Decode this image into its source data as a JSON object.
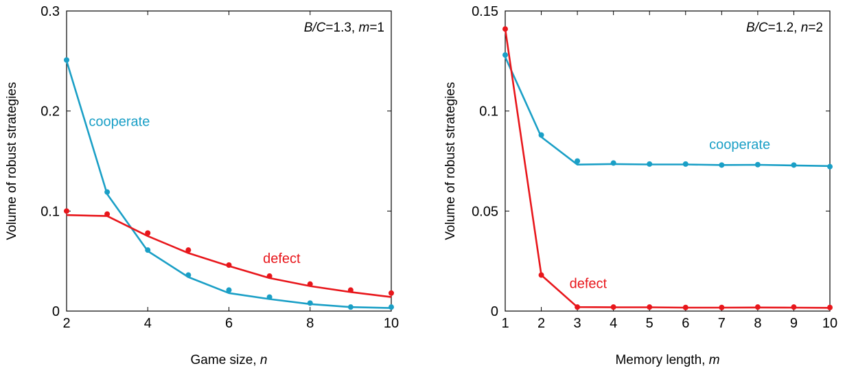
{
  "chart_data": [
    {
      "type": "line",
      "title": "",
      "annotation": {
        "parts": [
          {
            "text": "B/C",
            "italic": true
          },
          {
            "text": "=1.3, ",
            "italic": false
          },
          {
            "text": "m",
            "italic": true
          },
          {
            "text": "=1",
            "italic": false
          }
        ]
      },
      "xlabel": "Game size, ",
      "xlabel_var": "n",
      "ylabel": "Volume of robust strategies",
      "xlim": [
        2,
        10
      ],
      "ylim": [
        0,
        0.3
      ],
      "xticks": [
        2,
        4,
        6,
        8,
        10
      ],
      "yticks": [
        0,
        0.1,
        0.2,
        0.3
      ],
      "xtick_labels": [
        "2",
        "4",
        "6",
        "8",
        "10"
      ],
      "ytick_labels": [
        "0",
        "0.1",
        "0.2",
        "0.3"
      ],
      "grid": false,
      "series": [
        {
          "name": "cooperate",
          "color": "#1a9fc6",
          "x": [
            2,
            3,
            4,
            5,
            6,
            7,
            8,
            9,
            10
          ],
          "points": [
            0.251,
            0.119,
            0.061,
            0.036,
            0.021,
            0.014,
            0.008,
            0.004,
            0.004
          ],
          "fit": [
            0.25,
            0.117,
            0.06,
            0.034,
            0.018,
            0.012,
            0.007,
            0.004,
            0.003
          ],
          "label_pos": [
            3.3,
            0.185
          ]
        },
        {
          "name": "defect",
          "color": "#e8161b",
          "x": [
            2,
            3,
            4,
            5,
            6,
            7,
            8,
            9,
            10
          ],
          "points": [
            0.1,
            0.097,
            0.078,
            0.061,
            0.046,
            0.035,
            0.027,
            0.021,
            0.018
          ],
          "fit": [
            0.096,
            0.095,
            0.075,
            0.058,
            0.045,
            0.033,
            0.025,
            0.019,
            0.014
          ],
          "label_pos": [
            7.3,
            0.048
          ]
        }
      ]
    },
    {
      "type": "line",
      "title": "",
      "annotation": {
        "parts": [
          {
            "text": "B/C",
            "italic": true
          },
          {
            "text": "=1.2, ",
            "italic": false
          },
          {
            "text": "n",
            "italic": true
          },
          {
            "text": "=2",
            "italic": false
          }
        ]
      },
      "xlabel": "Memory length, ",
      "xlabel_var": "m",
      "ylabel": "Volume of robust strategies",
      "xlim": [
        1,
        10
      ],
      "ylim": [
        0,
        0.15
      ],
      "xticks": [
        1,
        2,
        3,
        4,
        5,
        6,
        7,
        8,
        9,
        10
      ],
      "yticks": [
        0,
        0.05,
        0.1,
        0.15
      ],
      "xtick_labels": [
        "1",
        "2",
        "3",
        "4",
        "5",
        "6",
        "7",
        "8",
        "9",
        "10"
      ],
      "ytick_labels": [
        "0",
        "0.05",
        "0.1",
        "0.15"
      ],
      "grid": false,
      "series": [
        {
          "name": "cooperate",
          "color": "#1a9fc6",
          "x": [
            1,
            2,
            3,
            4,
            5,
            6,
            7,
            8,
            9,
            10
          ],
          "points": [
            0.128,
            0.088,
            0.075,
            0.074,
            0.0735,
            0.0735,
            0.073,
            0.0732,
            0.073,
            0.0722
          ],
          "fit": [
            0.127,
            0.087,
            0.0732,
            0.0735,
            0.0733,
            0.0733,
            0.073,
            0.0731,
            0.0728,
            0.0725
          ],
          "label_pos": [
            7.5,
            0.081
          ]
        },
        {
          "name": "defect",
          "color": "#e8161b",
          "x": [
            1,
            2,
            3,
            4,
            5,
            6,
            7,
            8,
            9,
            10
          ],
          "points": [
            0.141,
            0.018,
            0.002,
            0.002,
            0.002,
            0.0018,
            0.0018,
            0.002,
            0.002,
            0.0018
          ],
          "fit": [
            0.141,
            0.018,
            0.002,
            0.0019,
            0.0019,
            0.0017,
            0.0017,
            0.0018,
            0.0017,
            0.0016
          ],
          "label_pos": [
            3.3,
            0.0115
          ]
        }
      ]
    }
  ]
}
